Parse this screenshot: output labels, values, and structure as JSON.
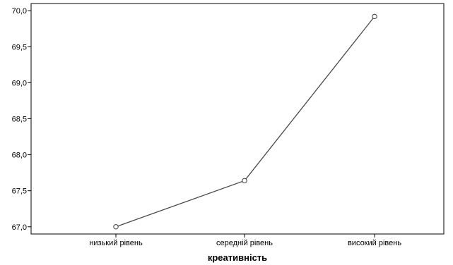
{
  "chart_data": {
    "type": "line",
    "categories": [
      "низький рівень",
      "середній рівень",
      "високий рівень"
    ],
    "series": [
      {
        "values": [
          67.0,
          67.64,
          69.92
        ]
      }
    ],
    "xlabel": "креативність",
    "ylabel": "",
    "ylim": [
      66.9,
      70.1
    ],
    "yticks": [
      67.0,
      67.5,
      68.0,
      68.5,
      69.0,
      69.5,
      70.0
    ],
    "ytick_labels": [
      "67,0",
      "67,5",
      "68,0",
      "68,5",
      "69,0",
      "69,5",
      "70,0"
    ],
    "grid": false,
    "markers": "open-circle",
    "line_color": "#4a4a4a"
  }
}
